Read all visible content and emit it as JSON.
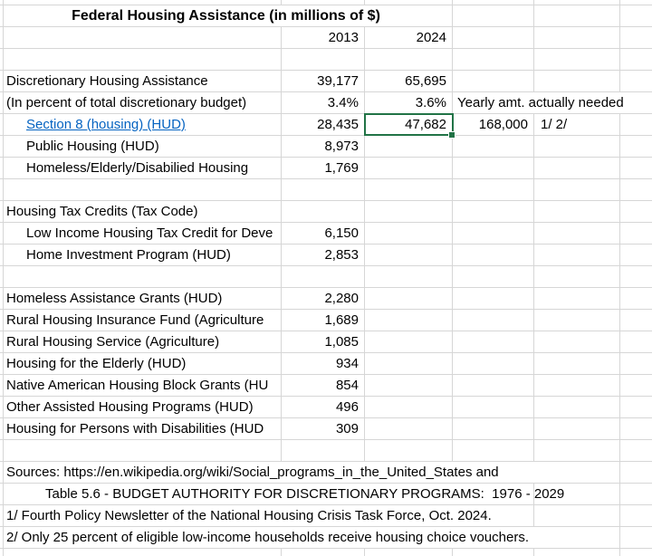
{
  "sheet": {
    "title": "Federal Housing Assistance (in millions of $)",
    "colors": {
      "hyperlink": "#0563C1",
      "selection_border": "#217346",
      "gridline": "#D6D6D6",
      "text": "#000000",
      "background": "#FFFFFF"
    },
    "selected_cell": {
      "value": "47,682",
      "row_label": "Section 8 (housing) (HUD)",
      "column": "2024"
    },
    "rows": [
      {
        "kind": "title"
      },
      {
        "kind": "years",
        "v2013": "2013",
        "v2024": "2024"
      },
      {
        "kind": "blank"
      },
      {
        "kind": "data",
        "label": "Discretionary Housing Assistance",
        "v2013": "39,177",
        "v2024": "65,695"
      },
      {
        "kind": "data",
        "label": "(In percent of total discretionary budget)",
        "v2013": "3.4%",
        "v2024": "3.6%",
        "vNote": "Yearly amt. actually needed",
        "merge_note": true
      },
      {
        "kind": "data",
        "label": "Section 8 (housing) (HUD)",
        "indent": true,
        "link": true,
        "v2013": "28,435",
        "v2024": "47,682",
        "selected": true,
        "vD": "168,000",
        "vE": "1/ 2/"
      },
      {
        "kind": "data",
        "label": "Public Housing (HUD)",
        "indent": true,
        "v2013": "8,973"
      },
      {
        "kind": "data",
        "label": "Homeless/Elderly/Disabilied Housing",
        "indent": true,
        "v2013": "1,769"
      },
      {
        "kind": "blank"
      },
      {
        "kind": "data",
        "label": "Housing Tax Credits (Tax Code)"
      },
      {
        "kind": "data",
        "label": "Low Income Housing Tax Credit for Deve",
        "indent": true,
        "v2013": "6,150"
      },
      {
        "kind": "data",
        "label": "Home Investment Program (HUD)",
        "indent": true,
        "v2013": "2,853"
      },
      {
        "kind": "blank"
      },
      {
        "kind": "data",
        "label": "Homeless Assistance Grants (HUD)",
        "v2013": "2,280"
      },
      {
        "kind": "data",
        "label": "Rural Housing Insurance Fund (Agriculture",
        "v2013": "1,689"
      },
      {
        "kind": "data",
        "label": "Rural Housing Service (Agriculture)",
        "v2013": "1,085"
      },
      {
        "kind": "data",
        "label": "Housing for the Elderly (HUD)",
        "v2013": "934"
      },
      {
        "kind": "data",
        "label": "Native American Housing Block Grants (HU",
        "v2013": "854"
      },
      {
        "kind": "data",
        "label": "Other Assisted Housing Programs (HUD)",
        "v2013": "496"
      },
      {
        "kind": "data",
        "label": "Housing for Persons with Disabilities (HUD",
        "v2013": "309"
      },
      {
        "kind": "blank"
      },
      {
        "kind": "note_wide",
        "text": "Sources: https://en.wikipedia.org/wiki/Social_programs_in_the_United_States and"
      },
      {
        "kind": "note_mid",
        "text": "Table 5.6 - BUDGET AUTHORITY FOR DISCRETIONARY PROGRAMS:  1976 - 2029",
        "indent": true
      },
      {
        "kind": "note_mid",
        "text": "1/ Fourth Policy Newsletter of the National Housing Crisis Task Force, Oct. 2024."
      },
      {
        "kind": "note_wide",
        "text": "2/ Only 25 percent of eligible low-income households receive housing choice vouchers."
      }
    ]
  }
}
